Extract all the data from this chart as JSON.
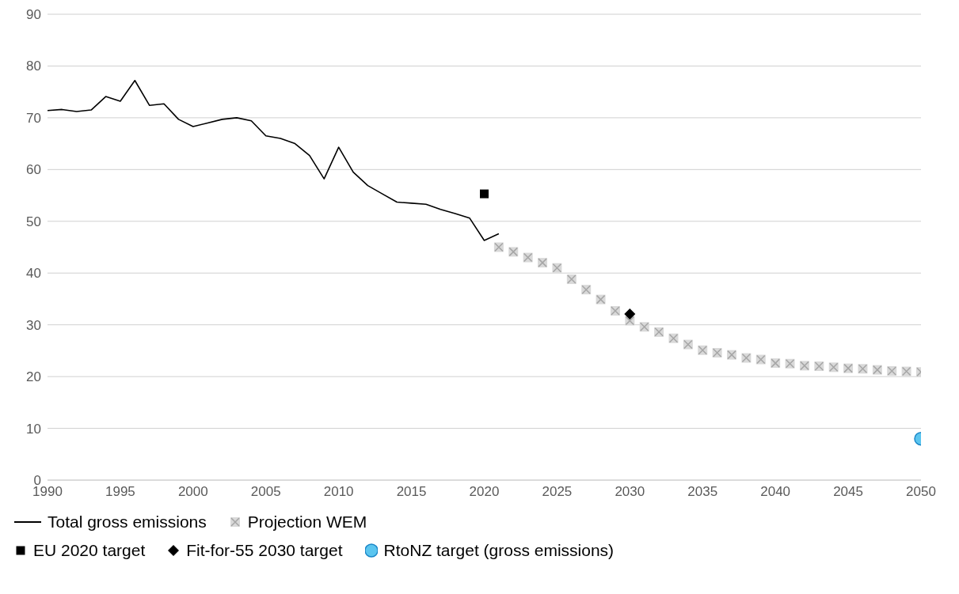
{
  "chart_data": {
    "type": "line",
    "xlim": [
      1990,
      2050
    ],
    "xticks": [
      1990,
      1995,
      2000,
      2005,
      2010,
      2015,
      2020,
      2025,
      2030,
      2035,
      2040,
      2045,
      2050
    ],
    "ylim": [
      0,
      90
    ],
    "yticks": [
      0,
      10,
      20,
      30,
      40,
      50,
      60,
      70,
      80,
      90
    ],
    "grid": "y",
    "legend": "bottom",
    "line_style": "solid",
    "series": [
      {
        "name": "Total gross emissions",
        "marker": "none",
        "color": "#000000",
        "x": [
          1990,
          1991,
          1992,
          1993,
          1994,
          1995,
          1996,
          1997,
          1998,
          1999,
          2000,
          2001,
          2002,
          2003,
          2004,
          2005,
          2006,
          2007,
          2008,
          2009,
          2010,
          2011,
          2012,
          2013,
          2014,
          2015,
          2016,
          2017,
          2018,
          2019,
          2020,
          2021
        ],
        "values": [
          71.4,
          71.6,
          71.2,
          71.5,
          74.1,
          73.2,
          77.2,
          72.4,
          72.7,
          69.7,
          68.3,
          69.0,
          69.7,
          70.0,
          69.4,
          66.5,
          66.0,
          65.0,
          62.7,
          58.2,
          64.3,
          59.5,
          56.9,
          55.3,
          53.7,
          53.5,
          53.3,
          52.3,
          51.5,
          50.6,
          46.3,
          47.6
        ]
      },
      {
        "name": "Projection WEM",
        "type": "scatter",
        "marker": "cross",
        "color": "#a6a6a6",
        "x": [
          2021,
          2022,
          2023,
          2024,
          2025,
          2026,
          2027,
          2028,
          2029,
          2030,
          2031,
          2032,
          2033,
          2034,
          2035,
          2036,
          2037,
          2038,
          2039,
          2040,
          2041,
          2042,
          2043,
          2044,
          2045,
          2046,
          2047,
          2048,
          2049,
          2050
        ],
        "values": [
          45.0,
          44.1,
          43.0,
          42.0,
          41.0,
          38.8,
          36.8,
          34.9,
          32.7,
          30.8,
          29.6,
          28.6,
          27.4,
          26.2,
          25.1,
          24.6,
          24.2,
          23.6,
          23.3,
          22.6,
          22.5,
          22.1,
          22.0,
          21.8,
          21.6,
          21.5,
          21.3,
          21.1,
          21.0,
          20.9
        ]
      },
      {
        "name": "EU 2020 target",
        "type": "scatter",
        "marker": "square",
        "color": "#000000",
        "x": [
          2020
        ],
        "values": [
          55.3
        ]
      },
      {
        "name": "Fit-for-55 2030 target",
        "type": "scatter",
        "marker": "diamond",
        "color": "#000000",
        "x": [
          2030
        ],
        "values": [
          32.1
        ]
      },
      {
        "name": "RtoNZ target (gross emissions)",
        "type": "scatter",
        "marker": "circle",
        "color": "#5bc5ef",
        "x": [
          2050
        ],
        "values": [
          8.0
        ]
      }
    ]
  }
}
